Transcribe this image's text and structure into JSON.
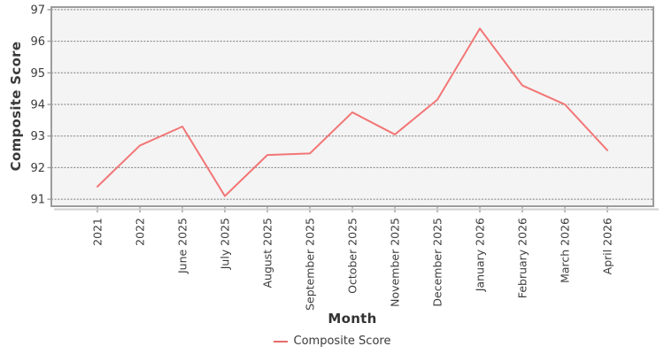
{
  "chart_data": {
    "type": "line",
    "title": "",
    "xlabel": "Month",
    "ylabel": "Composite Score",
    "categories": [
      "2021",
      "2022",
      "June 2025",
      "July 2025",
      "August 2025",
      "September 2025",
      "October 2025",
      "November 2025",
      "December 2025",
      "January 2026",
      "February 2026",
      "March 2026",
      "April 2026"
    ],
    "series": [
      {
        "name": "Composite Score",
        "values": [
          91.4,
          92.7,
          93.3,
          91.1,
          92.4,
          92.45,
          93.75,
          93.05,
          94.15,
          96.4,
          94.6,
          94.0,
          92.55
        ]
      }
    ],
    "yticks": [
      91,
      92,
      93,
      94,
      95,
      96,
      97
    ],
    "ylim": [
      90.78,
      97.08
    ],
    "grid": "horizontal-dashed",
    "legend_position": "bottom",
    "colors": {
      "line": "#f37676",
      "legend_line": "#e96a6a",
      "plot_bg": "#f4f4f4",
      "plot_border": "#9c9c9c",
      "gridline": "#7d7d7d",
      "tick_text": "#3d3d3d",
      "axis_shadow": "#cfcfcf"
    }
  },
  "legend": {
    "label": "Composite Score"
  }
}
